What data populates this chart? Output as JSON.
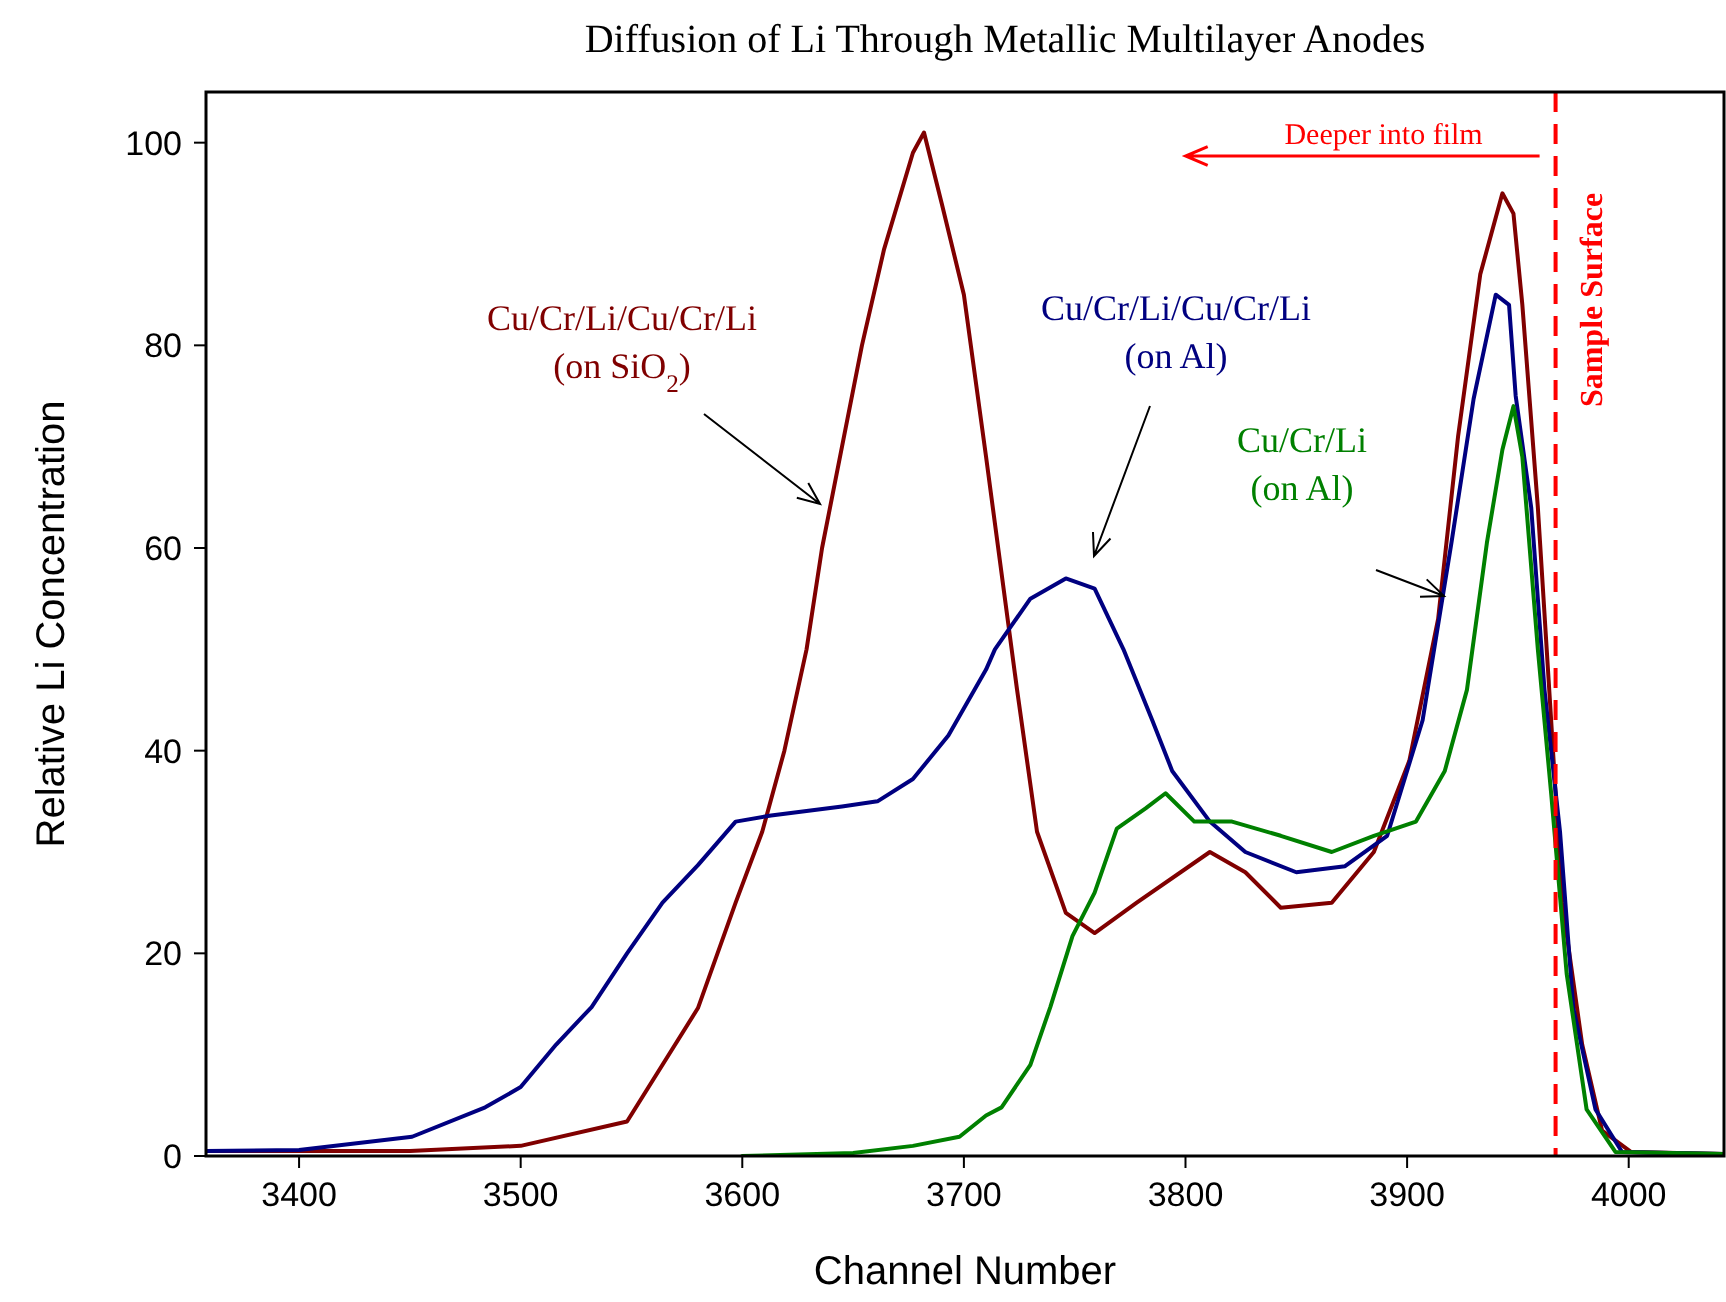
{
  "chart_data": {
    "type": "line",
    "title": "Diffusion of Li Through Metallic Multilayer Anodes",
    "xlabel": "Channel Number",
    "ylabel": "Relative Li Concentration",
    "xlim": [
      3358,
      4043
    ],
    "ylim": [
      0,
      105
    ],
    "xticks": [
      3400,
      3500,
      3600,
      3700,
      3800,
      3900,
      4000
    ],
    "yticks": [
      0,
      20,
      40,
      60,
      80,
      100
    ],
    "grid": false,
    "line_style": "solid",
    "marker": "none",
    "series": [
      {
        "name": "Cu/Cr/Li/Cu/Cr/Li (on SiO$_{2}$)",
        "color": "#800000",
        "x": [
          3358,
          3400,
          3450,
          3500,
          3548,
          3580,
          3597,
          3609,
          3619,
          3629,
          3636,
          3645,
          3654,
          3664,
          3677,
          3682,
          3690,
          3700,
          3710,
          3724,
          3733,
          3746,
          3759,
          3778,
          3811,
          3827,
          3843,
          3866,
          3885,
          3901,
          3914,
          3923,
          3933,
          3943,
          3948,
          3952,
          3959,
          3965,
          3970,
          3979,
          3988,
          4001,
          4043
        ],
        "values": [
          0.5,
          0.5,
          0.5,
          1,
          3.4,
          14.6,
          25,
          32,
          40,
          50,
          60,
          70,
          80,
          89.5,
          99,
          101,
          94,
          85,
          69,
          46,
          32,
          24,
          22,
          25,
          30,
          28,
          24.5,
          25,
          30,
          39,
          53,
          71,
          87,
          95,
          93,
          84,
          64,
          43,
          25,
          11,
          2.5,
          0.4,
          0.2
        ]
      },
      {
        "name": "Cu/Cr/Li/Cu/Cr/Li (on Al)",
        "color": "#000080",
        "x": [
          3358,
          3400,
          3451,
          3484,
          3500,
          3516,
          3532,
          3548,
          3564,
          3580,
          3597,
          3613,
          3645,
          3661,
          3677,
          3693,
          3710,
          3714,
          3730,
          3746,
          3759,
          3772,
          3785,
          3794,
          3811,
          3827,
          3850,
          3872,
          3891,
          3907,
          3920,
          3930,
          3940,
          3946,
          3949,
          3956,
          3962,
          3969,
          3975,
          3985,
          3997,
          4043
        ],
        "values": [
          0.5,
          0.6,
          1.9,
          4.8,
          6.8,
          11,
          14.7,
          20,
          25,
          28.7,
          33,
          33.6,
          34.5,
          35,
          37.2,
          41.5,
          48,
          50,
          55,
          57,
          56,
          50,
          43,
          38,
          33,
          30,
          28,
          28.6,
          31.6,
          43,
          60.5,
          74.7,
          85,
          84,
          75,
          64,
          46,
          32,
          14.6,
          4.6,
          0.4,
          0.2
        ]
      },
      {
        "name": "Cu/Cr/Li (on Al)",
        "color": "#008000",
        "x": [
          3600,
          3650,
          3677,
          3698,
          3710,
          3717,
          3730,
          3739,
          3749,
          3759,
          3769,
          3782,
          3791,
          3804,
          3821,
          3843,
          3866,
          3885,
          3904,
          3917,
          3927,
          3936,
          3943,
          3948,
          3952,
          3959,
          3965,
          3972,
          3981,
          3994,
          4043
        ],
        "values": [
          0,
          0.3,
          1,
          1.9,
          4,
          4.8,
          9,
          14.7,
          21.7,
          26,
          32.3,
          34.3,
          35.8,
          33,
          33,
          31.6,
          30,
          31.6,
          33,
          38,
          46,
          60.5,
          69.7,
          74,
          69,
          50,
          35.8,
          18,
          4.6,
          0.4,
          0.2
        ]
      }
    ],
    "ref_lines": [
      {
        "axis": "x",
        "value": 3967,
        "label": "Sample Surface",
        "color": "#ff0000",
        "line_style": "dashed"
      }
    ],
    "annotations": [
      "Deeper into film"
    ]
  }
}
